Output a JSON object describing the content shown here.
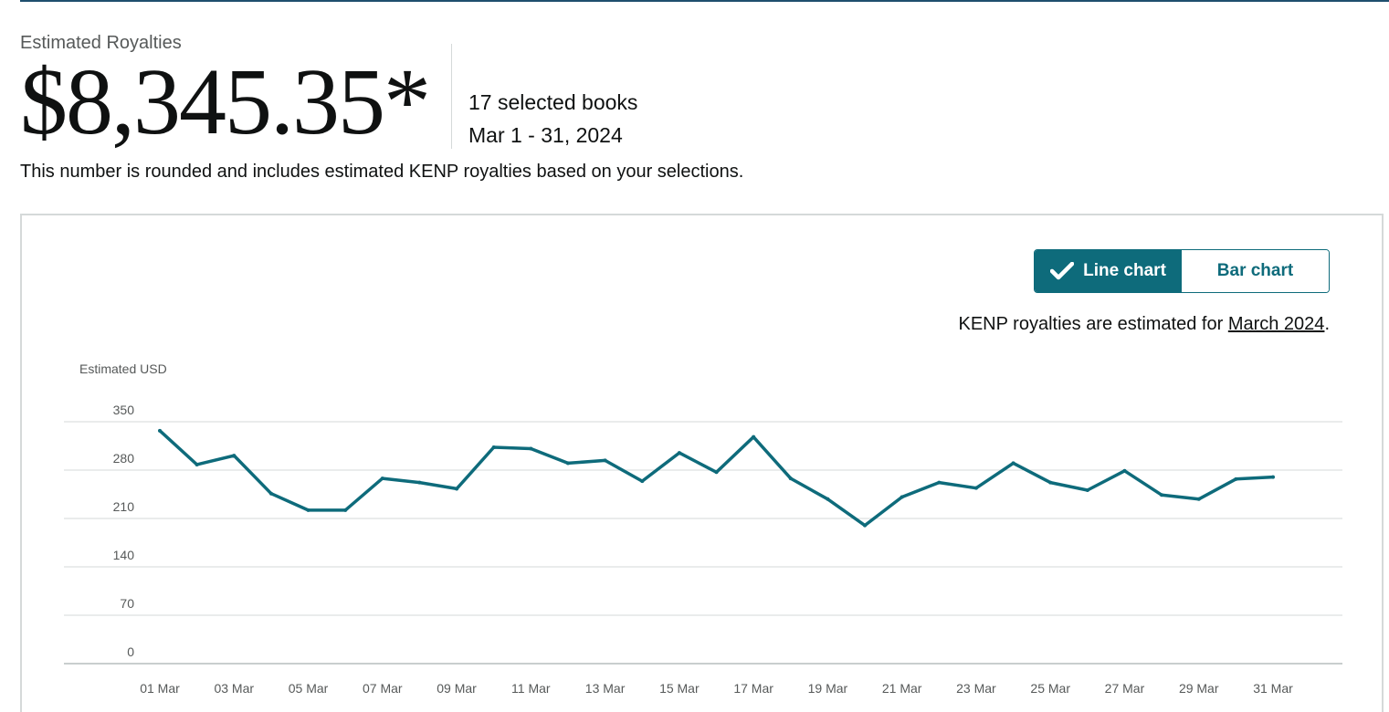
{
  "summary": {
    "label": "Estimated Royalties",
    "amount": "$8,345.35*",
    "books": "17 selected books",
    "date_range": "Mar 1 - 31, 2024",
    "disclaimer": "This number is rounded and includes estimated KENP royalties based on your selections."
  },
  "toggle": {
    "line_label": "Line chart",
    "bar_label": "Bar chart",
    "selected": "line"
  },
  "note": {
    "prefix": "KENP royalties are estimated for ",
    "link": "March 2024",
    "suffix": "."
  },
  "colors": {
    "accent": "#0e6b7b",
    "line": "#0e6b7b",
    "grid": "#d5d9d9",
    "rule": "#1f4f6e"
  },
  "icons": {
    "toggle_check": "check-icon"
  },
  "chart_data": {
    "type": "line",
    "ylabel": "Estimated USD",
    "xlabel": "",
    "ylim": [
      0,
      350
    ],
    "yticks": [
      0,
      70,
      140,
      210,
      280,
      350
    ],
    "grid": true,
    "x": [
      "01 Mar",
      "02 Mar",
      "03 Mar",
      "04 Mar",
      "05 Mar",
      "06 Mar",
      "07 Mar",
      "08 Mar",
      "09 Mar",
      "10 Mar",
      "11 Mar",
      "12 Mar",
      "13 Mar",
      "14 Mar",
      "15 Mar",
      "16 Mar",
      "17 Mar",
      "18 Mar",
      "19 Mar",
      "20 Mar",
      "21 Mar",
      "22 Mar",
      "23 Mar",
      "24 Mar",
      "25 Mar",
      "26 Mar",
      "27 Mar",
      "28 Mar",
      "29 Mar",
      "30 Mar",
      "31 Mar"
    ],
    "xtick_labels": [
      "01 Mar",
      "03 Mar",
      "05 Mar",
      "07 Mar",
      "09 Mar",
      "11 Mar",
      "13 Mar",
      "15 Mar",
      "17 Mar",
      "19 Mar",
      "21 Mar",
      "23 Mar",
      "25 Mar",
      "27 Mar",
      "29 Mar",
      "31 Mar"
    ],
    "series": [
      {
        "values": [
          337,
          288,
          301,
          246,
          222,
          222,
          268,
          262,
          253,
          313,
          311,
          290,
          294,
          264,
          305,
          277,
          328,
          268,
          238,
          200,
          241,
          262,
          254,
          290,
          262,
          251,
          279,
          244,
          238,
          267,
          270
        ]
      }
    ]
  }
}
